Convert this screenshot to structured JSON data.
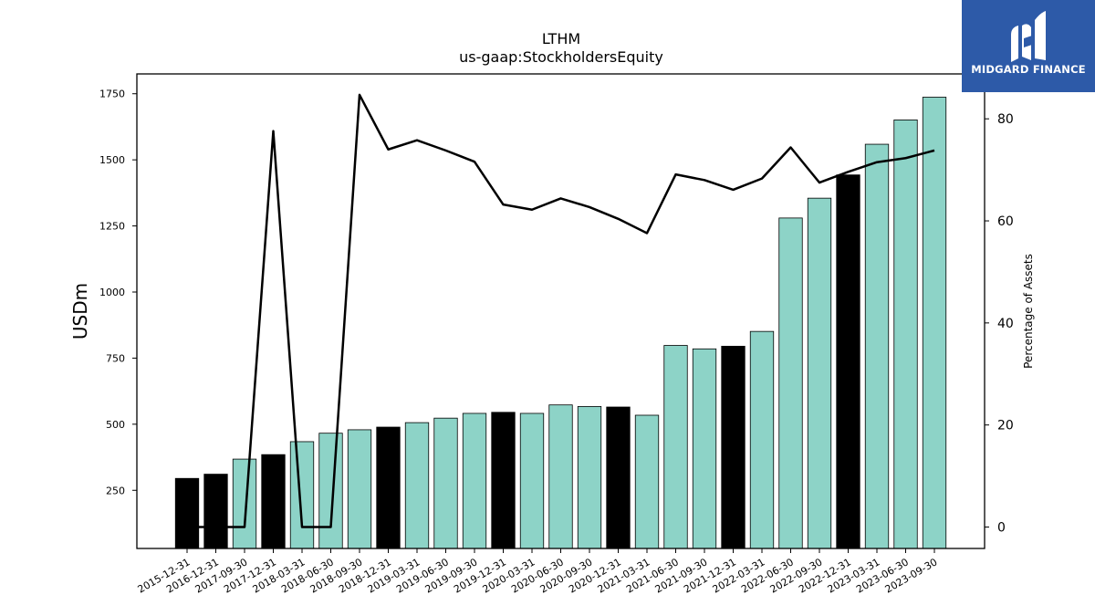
{
  "logo": {
    "text": "MIDGARD FINANCE",
    "icon": "midgard-logo-icon",
    "background": "#2d5aa8"
  },
  "chart_data": {
    "type": "bar",
    "title": "LTHM",
    "subtitle": "us-gaap:StockholdersEquity",
    "ylabel": "USDm",
    "y2label": "Percentage of Assets",
    "categories": [
      "2015-12-31",
      "2016-12-31",
      "2017-09-30",
      "2017-12-31",
      "2018-03-31",
      "2018-06-30",
      "2018-09-30",
      "2018-12-31",
      "2019-03-31",
      "2019-06-30",
      "2019-09-30",
      "2019-12-31",
      "2020-03-31",
      "2020-06-30",
      "2020-09-30",
      "2020-12-31",
      "2021-03-31",
      "2021-06-30",
      "2021-09-30",
      "2021-12-31",
      "2022-03-31",
      "2022-06-30",
      "2022-09-30",
      "2022-12-31",
      "2023-03-31",
      "2023-06-30",
      "2023-09-30"
    ],
    "series": [
      {
        "values": [
          295,
          311,
          368,
          385,
          434,
          466,
          479,
          489,
          506,
          523,
          541,
          545,
          541,
          573,
          567,
          565,
          534,
          798,
          785,
          795,
          851,
          1280,
          1355,
          1443,
          1559,
          1651,
          1737
        ]
      },
      {
        "axis": "right",
        "type": "line",
        "values": [
          0,
          0,
          0,
          77.6,
          0,
          0,
          84.7,
          74.0,
          75.8,
          73.8,
          71.6,
          63.2,
          62.2,
          64.4,
          62.7,
          60.4,
          57.6,
          69.1,
          68.0,
          66.1,
          68.3,
          74.4,
          67.5,
          69.6,
          71.5,
          72.3,
          73.8
        ]
      }
    ],
    "annual_indices": [
      0,
      1,
      3,
      7,
      11,
      15,
      19,
      23
    ],
    "ylim": [
      30,
      1825
    ],
    "y2lim": [
      -4.2,
      88.8
    ],
    "yticks": [
      250,
      500,
      750,
      1000,
      1250,
      1500,
      1750
    ],
    "y2ticks": [
      0,
      20,
      40,
      60,
      80
    ],
    "colors": {
      "quarterly_bar": "#8dd3c7",
      "annual_bar": "#000000",
      "line": "#000000"
    },
    "grid": false
  }
}
